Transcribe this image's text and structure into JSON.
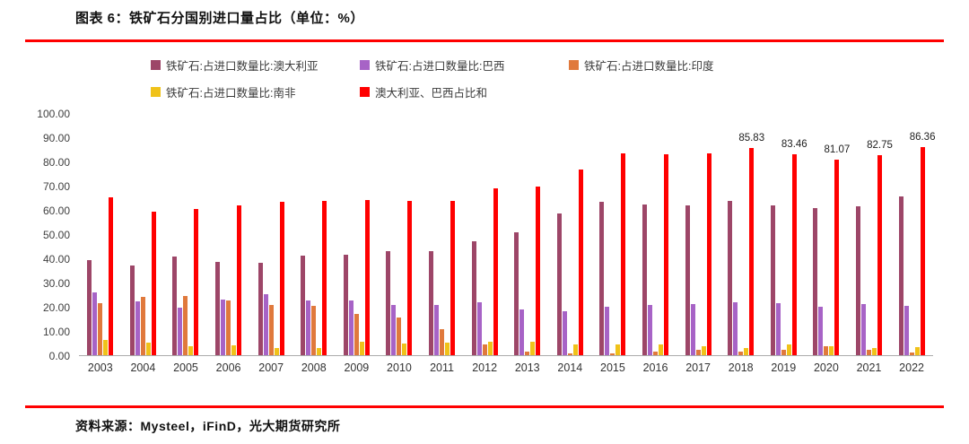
{
  "header": {
    "title": "图表 6：铁矿石分国别进口量占比（单位：%）"
  },
  "footer": {
    "source": "资料来源：Mysteel，iFinD，光大期货研究所"
  },
  "accent_color": "#ff0000",
  "chart_data": {
    "type": "bar",
    "title": "图表 6：铁矿石分国别进口量占比（单位：%）",
    "xlabel": "",
    "ylabel": "",
    "ylim": [
      0,
      100
    ],
    "grid": false,
    "legend_position": "top",
    "legend_rows": [
      [
        0,
        1,
        2
      ],
      [
        3,
        4
      ]
    ],
    "y_ticks": [
      "100.00",
      "90.00",
      "80.00",
      "70.00",
      "60.00",
      "50.00",
      "40.00",
      "30.00",
      "20.00",
      "10.00",
      "0.00"
    ],
    "categories": [
      "2003",
      "2004",
      "2005",
      "2006",
      "2007",
      "2008",
      "2009",
      "2010",
      "2011",
      "2012",
      "2013",
      "2014",
      "2015",
      "2016",
      "2017",
      "2018",
      "2019",
      "2020",
      "2021",
      "2022"
    ],
    "series": [
      {
        "name": "铁矿石:占进口数量比:澳大利亚",
        "color": "#9d4668",
        "values": [
          39.4,
          37.2,
          40.8,
          38.8,
          38.2,
          41.3,
          41.8,
          43.0,
          43.3,
          47.3,
          50.9,
          58.8,
          63.7,
          62.4,
          62.2,
          64.0,
          62.0,
          61.0,
          61.6,
          65.9
        ]
      },
      {
        "name": "铁矿石:占进口数量比:巴西",
        "color": "#a763c6",
        "values": [
          25.9,
          22.4,
          19.7,
          23.2,
          25.2,
          22.6,
          22.5,
          21.0,
          20.8,
          22.0,
          18.9,
          18.2,
          20.1,
          21.0,
          21.3,
          21.8,
          21.5,
          20.1,
          21.1,
          20.5
        ]
      },
      {
        "name": "铁矿石:占进口数量比:印度",
        "color": "#e0793c",
        "values": [
          21.5,
          24.0,
          24.6,
          22.6,
          20.8,
          20.3,
          17.0,
          15.5,
          10.7,
          4.4,
          1.5,
          0.8,
          0.7,
          1.4,
          2.2,
          1.5,
          2.1,
          3.6,
          2.4,
          1.0
        ]
      },
      {
        "name": "铁矿石:占进口数量比:南非",
        "color": "#f0c219",
        "values": [
          6.4,
          5.3,
          3.9,
          4.0,
          3.1,
          2.9,
          5.4,
          4.9,
          5.3,
          5.5,
          5.4,
          4.6,
          4.5,
          4.4,
          3.9,
          2.9,
          4.3,
          3.9,
          3.0,
          3.3
        ]
      },
      {
        "name": "澳大利亚、巴西占比和",
        "color": "#ff0000",
        "values": [
          65.3,
          59.6,
          60.5,
          62.0,
          63.4,
          63.9,
          64.3,
          64.0,
          64.1,
          69.3,
          69.8,
          77.0,
          83.8,
          83.4,
          83.5,
          85.83,
          83.46,
          81.07,
          82.75,
          86.36
        ],
        "labels": [
          null,
          null,
          null,
          null,
          null,
          null,
          null,
          null,
          null,
          null,
          null,
          null,
          null,
          null,
          null,
          "85.83",
          "83.46",
          "81.07",
          "82.75",
          "86.36"
        ]
      }
    ]
  }
}
